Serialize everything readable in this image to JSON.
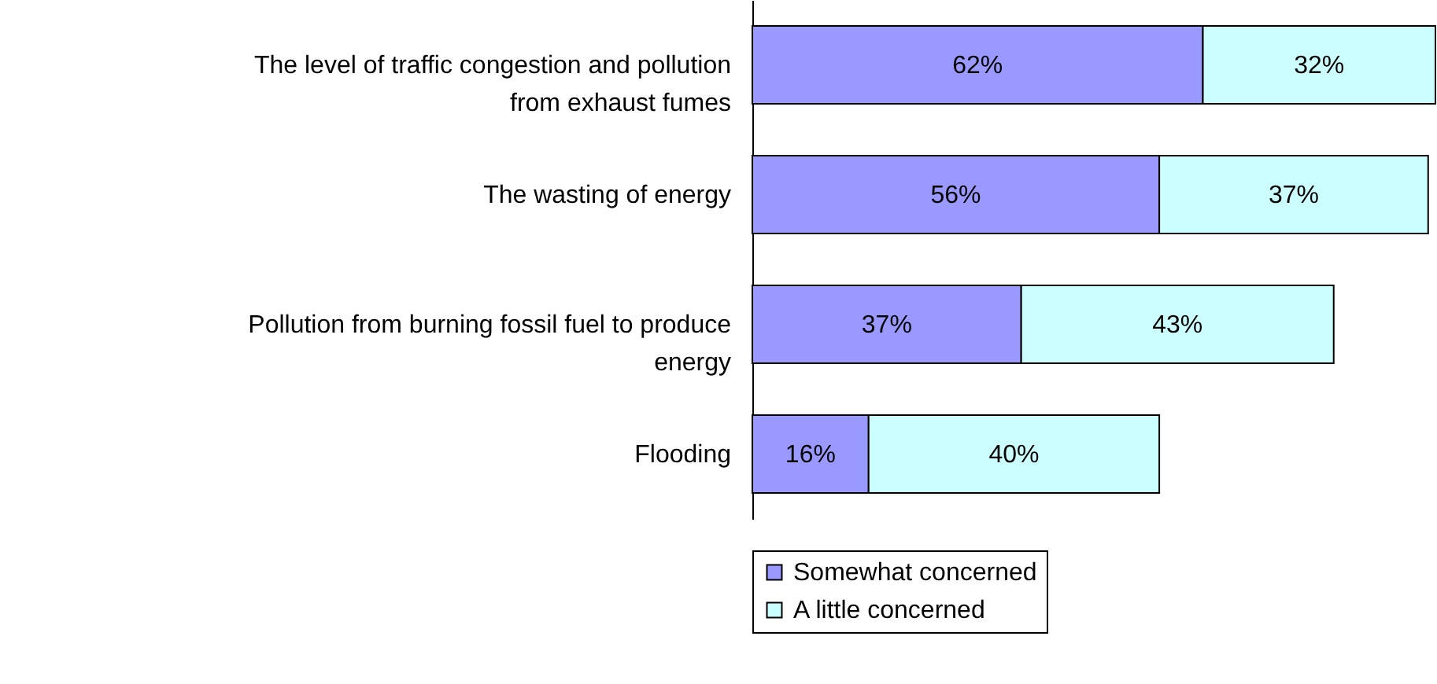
{
  "chart_data": {
    "type": "bar",
    "orientation": "horizontal",
    "stacked": true,
    "data_labels": true,
    "legend": "bottom",
    "grid": false,
    "categories": [
      "The level of traffic congestion and pollution from exhaust fumes",
      "The wasting of energy",
      "Pollution from burning fossil fuel to produce energy",
      "Flooding"
    ],
    "series": [
      {
        "name": "Somewhat concerned",
        "color": "#9999ff",
        "values": [
          62,
          56,
          37,
          16
        ],
        "value_labels": [
          "62%",
          "56%",
          "37%",
          "16%"
        ]
      },
      {
        "name": "A little concerned",
        "color": "#ccffff",
        "values": [
          32,
          37,
          43,
          40
        ],
        "value_labels": [
          "32%",
          "37%",
          "43%",
          "40%"
        ]
      }
    ]
  }
}
